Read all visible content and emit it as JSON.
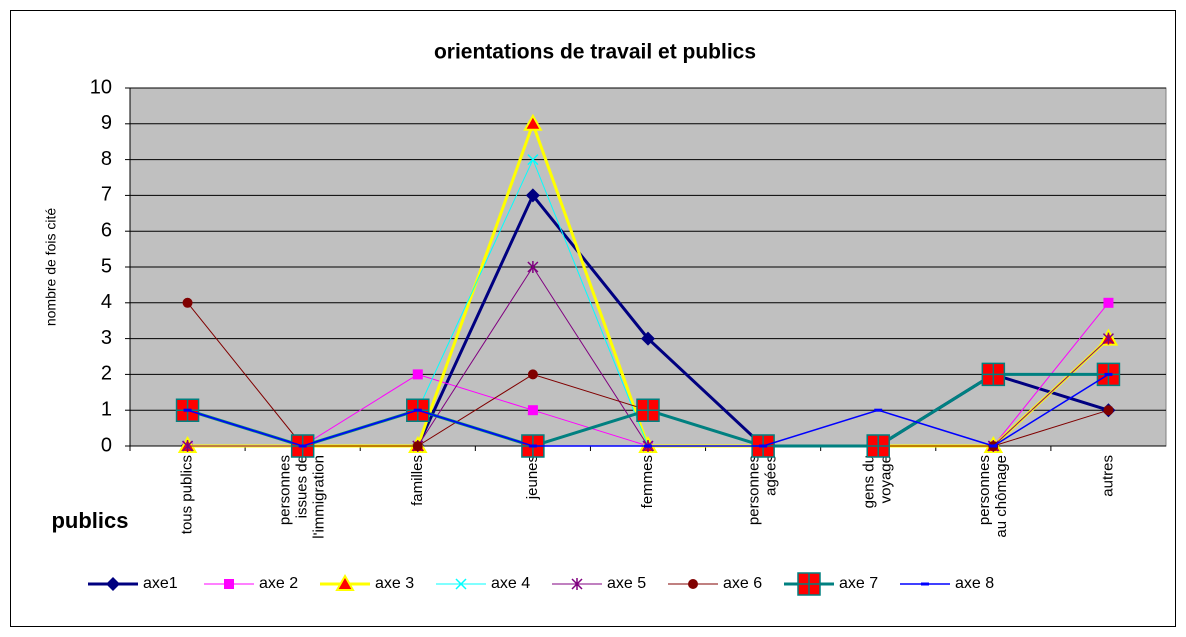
{
  "chart_data": {
    "type": "line",
    "title": "orientations de  travail et publics",
    "y_label": "nombre de fois cité",
    "x_label": "publics",
    "categories": [
      "tous publics",
      "personnes\nissues de\nl'immigration",
      "familles",
      "jeunes",
      "femmes",
      "personnes\nagées",
      "gens du\nvoyage",
      "personnes\nau chômage",
      "autres"
    ],
    "ylim": [
      0,
      10
    ],
    "yticks": [
      0,
      1,
      2,
      3,
      4,
      5,
      6,
      7,
      8,
      9,
      10
    ],
    "grid": true,
    "series": [
      {
        "name": "axe1",
        "color": "#000080",
        "values": [
          0,
          0,
          0,
          7,
          3,
          0,
          0,
          2,
          1
        ]
      },
      {
        "name": "axe 2",
        "color": "#FF00FF",
        "values": [
          0,
          0,
          2,
          1,
          0,
          0,
          0,
          0,
          4
        ]
      },
      {
        "name": "axe 3",
        "color": "#FFFF00",
        "values": [
          0,
          0,
          0,
          9,
          0,
          0,
          0,
          0,
          3
        ]
      },
      {
        "name": "axe 4",
        "color": "#00FFFF",
        "values": [
          0,
          0,
          1,
          8,
          0,
          0,
          0,
          0,
          2
        ]
      },
      {
        "name": "axe 5",
        "color": "#800080",
        "values": [
          0,
          0,
          0,
          5,
          0,
          0,
          0,
          0,
          3
        ]
      },
      {
        "name": "axe 6",
        "color": "#800000",
        "values": [
          4,
          0,
          0,
          2,
          1,
          0,
          0,
          0,
          1
        ]
      },
      {
        "name": "axe 7",
        "color": "#008080",
        "values": [
          1,
          0,
          1,
          0,
          1,
          0,
          0,
          2,
          2
        ]
      },
      {
        "name": "axe 8",
        "color": "#0000FF",
        "values": [
          1,
          0,
          1,
          0,
          0,
          0,
          1,
          0,
          2
        ]
      }
    ]
  }
}
